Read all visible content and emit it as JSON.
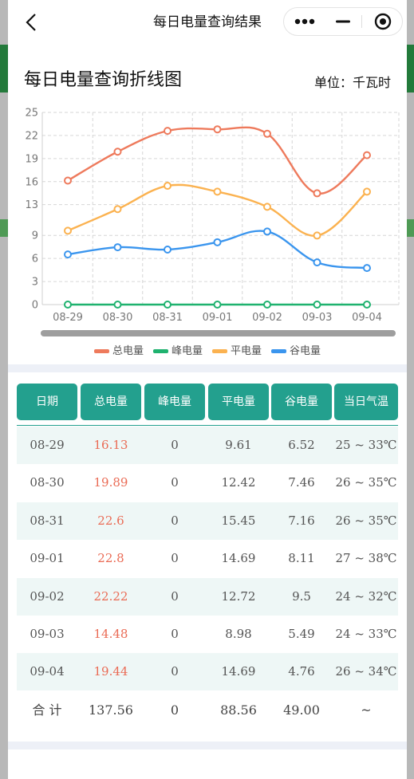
{
  "navbar": {
    "title": "每日电量查询结果",
    "back_icon": "chevron-left-icon",
    "more_icon": "more-dots-icon",
    "minimize_icon": "minus-icon",
    "close_icon": "target-circle-icon"
  },
  "chart": {
    "heading": "每日电量查询折线图",
    "unit": "单位：千瓦时"
  },
  "chart_data": {
    "type": "line",
    "categories": [
      "08-29",
      "08-30",
      "08-31",
      "09-01",
      "09-02",
      "09-03",
      "09-04"
    ],
    "yticks": [
      0,
      3,
      6,
      9,
      13,
      16,
      19,
      22,
      25
    ],
    "ylim": [
      0,
      25
    ],
    "grid": true,
    "legend_position": "bottom",
    "series": [
      {
        "name": "总电量",
        "color": "#ee7a5c",
        "values": [
          16.13,
          19.89,
          22.6,
          22.8,
          22.22,
          14.48,
          19.44
        ]
      },
      {
        "name": "峰电量",
        "color": "#1fb26f",
        "values": [
          0,
          0,
          0,
          0,
          0,
          0,
          0
        ]
      },
      {
        "name": "平电量",
        "color": "#fbb250",
        "values": [
          9.61,
          12.42,
          15.45,
          14.69,
          12.72,
          8.98,
          14.69
        ]
      },
      {
        "name": "谷电量",
        "color": "#3a95ee",
        "values": [
          6.52,
          7.46,
          7.16,
          8.11,
          9.5,
          5.49,
          4.76
        ]
      }
    ]
  },
  "table": {
    "headers": [
      "日期",
      "总电量",
      "峰电量",
      "平电量",
      "谷电量",
      "当日气温"
    ],
    "rows": [
      [
        "08-29",
        "16.13",
        "0",
        "9.61",
        "6.52",
        "25 ~ 33℃"
      ],
      [
        "08-30",
        "19.89",
        "0",
        "12.42",
        "7.46",
        "26 ~ 35℃"
      ],
      [
        "08-31",
        "22.6",
        "0",
        "15.45",
        "7.16",
        "26 ~ 35℃"
      ],
      [
        "09-01",
        "22.8",
        "0",
        "14.69",
        "8.11",
        "27 ~ 38℃"
      ],
      [
        "09-02",
        "22.22",
        "0",
        "12.72",
        "9.5",
        "24 ~ 32℃"
      ],
      [
        "09-03",
        "14.48",
        "0",
        "8.98",
        "5.49",
        "24 ~ 33℃"
      ],
      [
        "09-04",
        "19.44",
        "0",
        "14.69",
        "4.76",
        "26 ~ 34℃"
      ]
    ],
    "total": [
      "合 计",
      "137.56",
      "0",
      "88.56",
      "49.00",
      "~"
    ]
  },
  "colors": {
    "header_bg": "#23a08e",
    "row_alt_bg": "#eef7f6",
    "total_text_red": "#ea6b55"
  }
}
